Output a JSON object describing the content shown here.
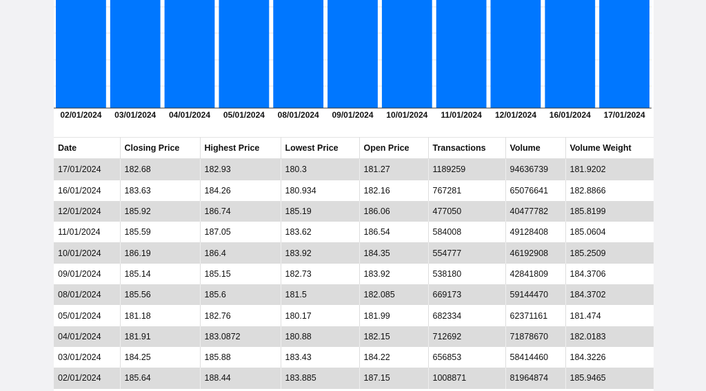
{
  "chart_data": {
    "type": "bar",
    "categories": [
      "02/01/2024",
      "03/01/2024",
      "04/01/2024",
      "05/01/2024",
      "08/01/2024",
      "09/01/2024",
      "10/01/2024",
      "11/01/2024",
      "12/01/2024",
      "16/01/2024",
      "17/01/2024"
    ],
    "values": [
      185.64,
      184.25,
      181.91,
      181.18,
      185.56,
      185.14,
      186.19,
      185.59,
      185.92,
      183.63,
      182.68
    ],
    "bar_color": "#0077ff",
    "grid": true
  },
  "table": {
    "columns": [
      "Date",
      "Closing Price",
      "Highest Price",
      "Lowest Price",
      "Open Price",
      "Transactions",
      "Volume",
      "Volume Weight"
    ],
    "rows": [
      [
        "17/01/2024",
        "182.68",
        "182.93",
        "180.3",
        "181.27",
        "1189259",
        "94636739",
        "181.9202"
      ],
      [
        "16/01/2024",
        "183.63",
        "184.26",
        "180.934",
        "182.16",
        "767281",
        "65076641",
        "182.8866"
      ],
      [
        "12/01/2024",
        "185.92",
        "186.74",
        "185.19",
        "186.06",
        "477050",
        "40477782",
        "185.8199"
      ],
      [
        "11/01/2024",
        "185.59",
        "187.05",
        "183.62",
        "186.54",
        "584008",
        "49128408",
        "185.0604"
      ],
      [
        "10/01/2024",
        "186.19",
        "186.4",
        "183.92",
        "184.35",
        "554777",
        "46192908",
        "185.2509"
      ],
      [
        "09/01/2024",
        "185.14",
        "185.15",
        "182.73",
        "183.92",
        "538180",
        "42841809",
        "184.3706"
      ],
      [
        "08/01/2024",
        "185.56",
        "185.6",
        "181.5",
        "182.085",
        "669173",
        "59144470",
        "184.3702"
      ],
      [
        "05/01/2024",
        "181.18",
        "182.76",
        "180.17",
        "181.99",
        "682334",
        "62371161",
        "181.474"
      ],
      [
        "04/01/2024",
        "181.91",
        "183.0872",
        "180.88",
        "182.15",
        "712692",
        "71878670",
        "182.0183"
      ],
      [
        "03/01/2024",
        "184.25",
        "185.88",
        "183.43",
        "184.22",
        "656853",
        "58414460",
        "184.3226"
      ],
      [
        "02/01/2024",
        "185.64",
        "188.44",
        "183.885",
        "187.15",
        "1008871",
        "81964874",
        "185.9465"
      ]
    ]
  }
}
